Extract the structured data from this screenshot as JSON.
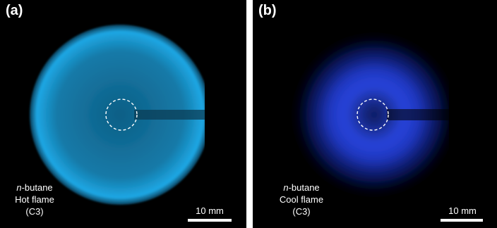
{
  "panels": [
    {
      "label": "(a)",
      "caption": {
        "fuel_prefix": "n",
        "fuel_suffix": "-butane",
        "flame_type": "Hot flame",
        "condition": "(C3)"
      },
      "scalebar_label": "10 mm",
      "glow_color": "#1aa6e8"
    },
    {
      "label": "(b)",
      "caption": {
        "fuel_prefix": "n",
        "fuel_suffix": "-butane",
        "flame_type": "Cool flame",
        "condition": "(C3)"
      },
      "scalebar_label": "10 mm",
      "glow_color": "#2f4fff"
    }
  ]
}
